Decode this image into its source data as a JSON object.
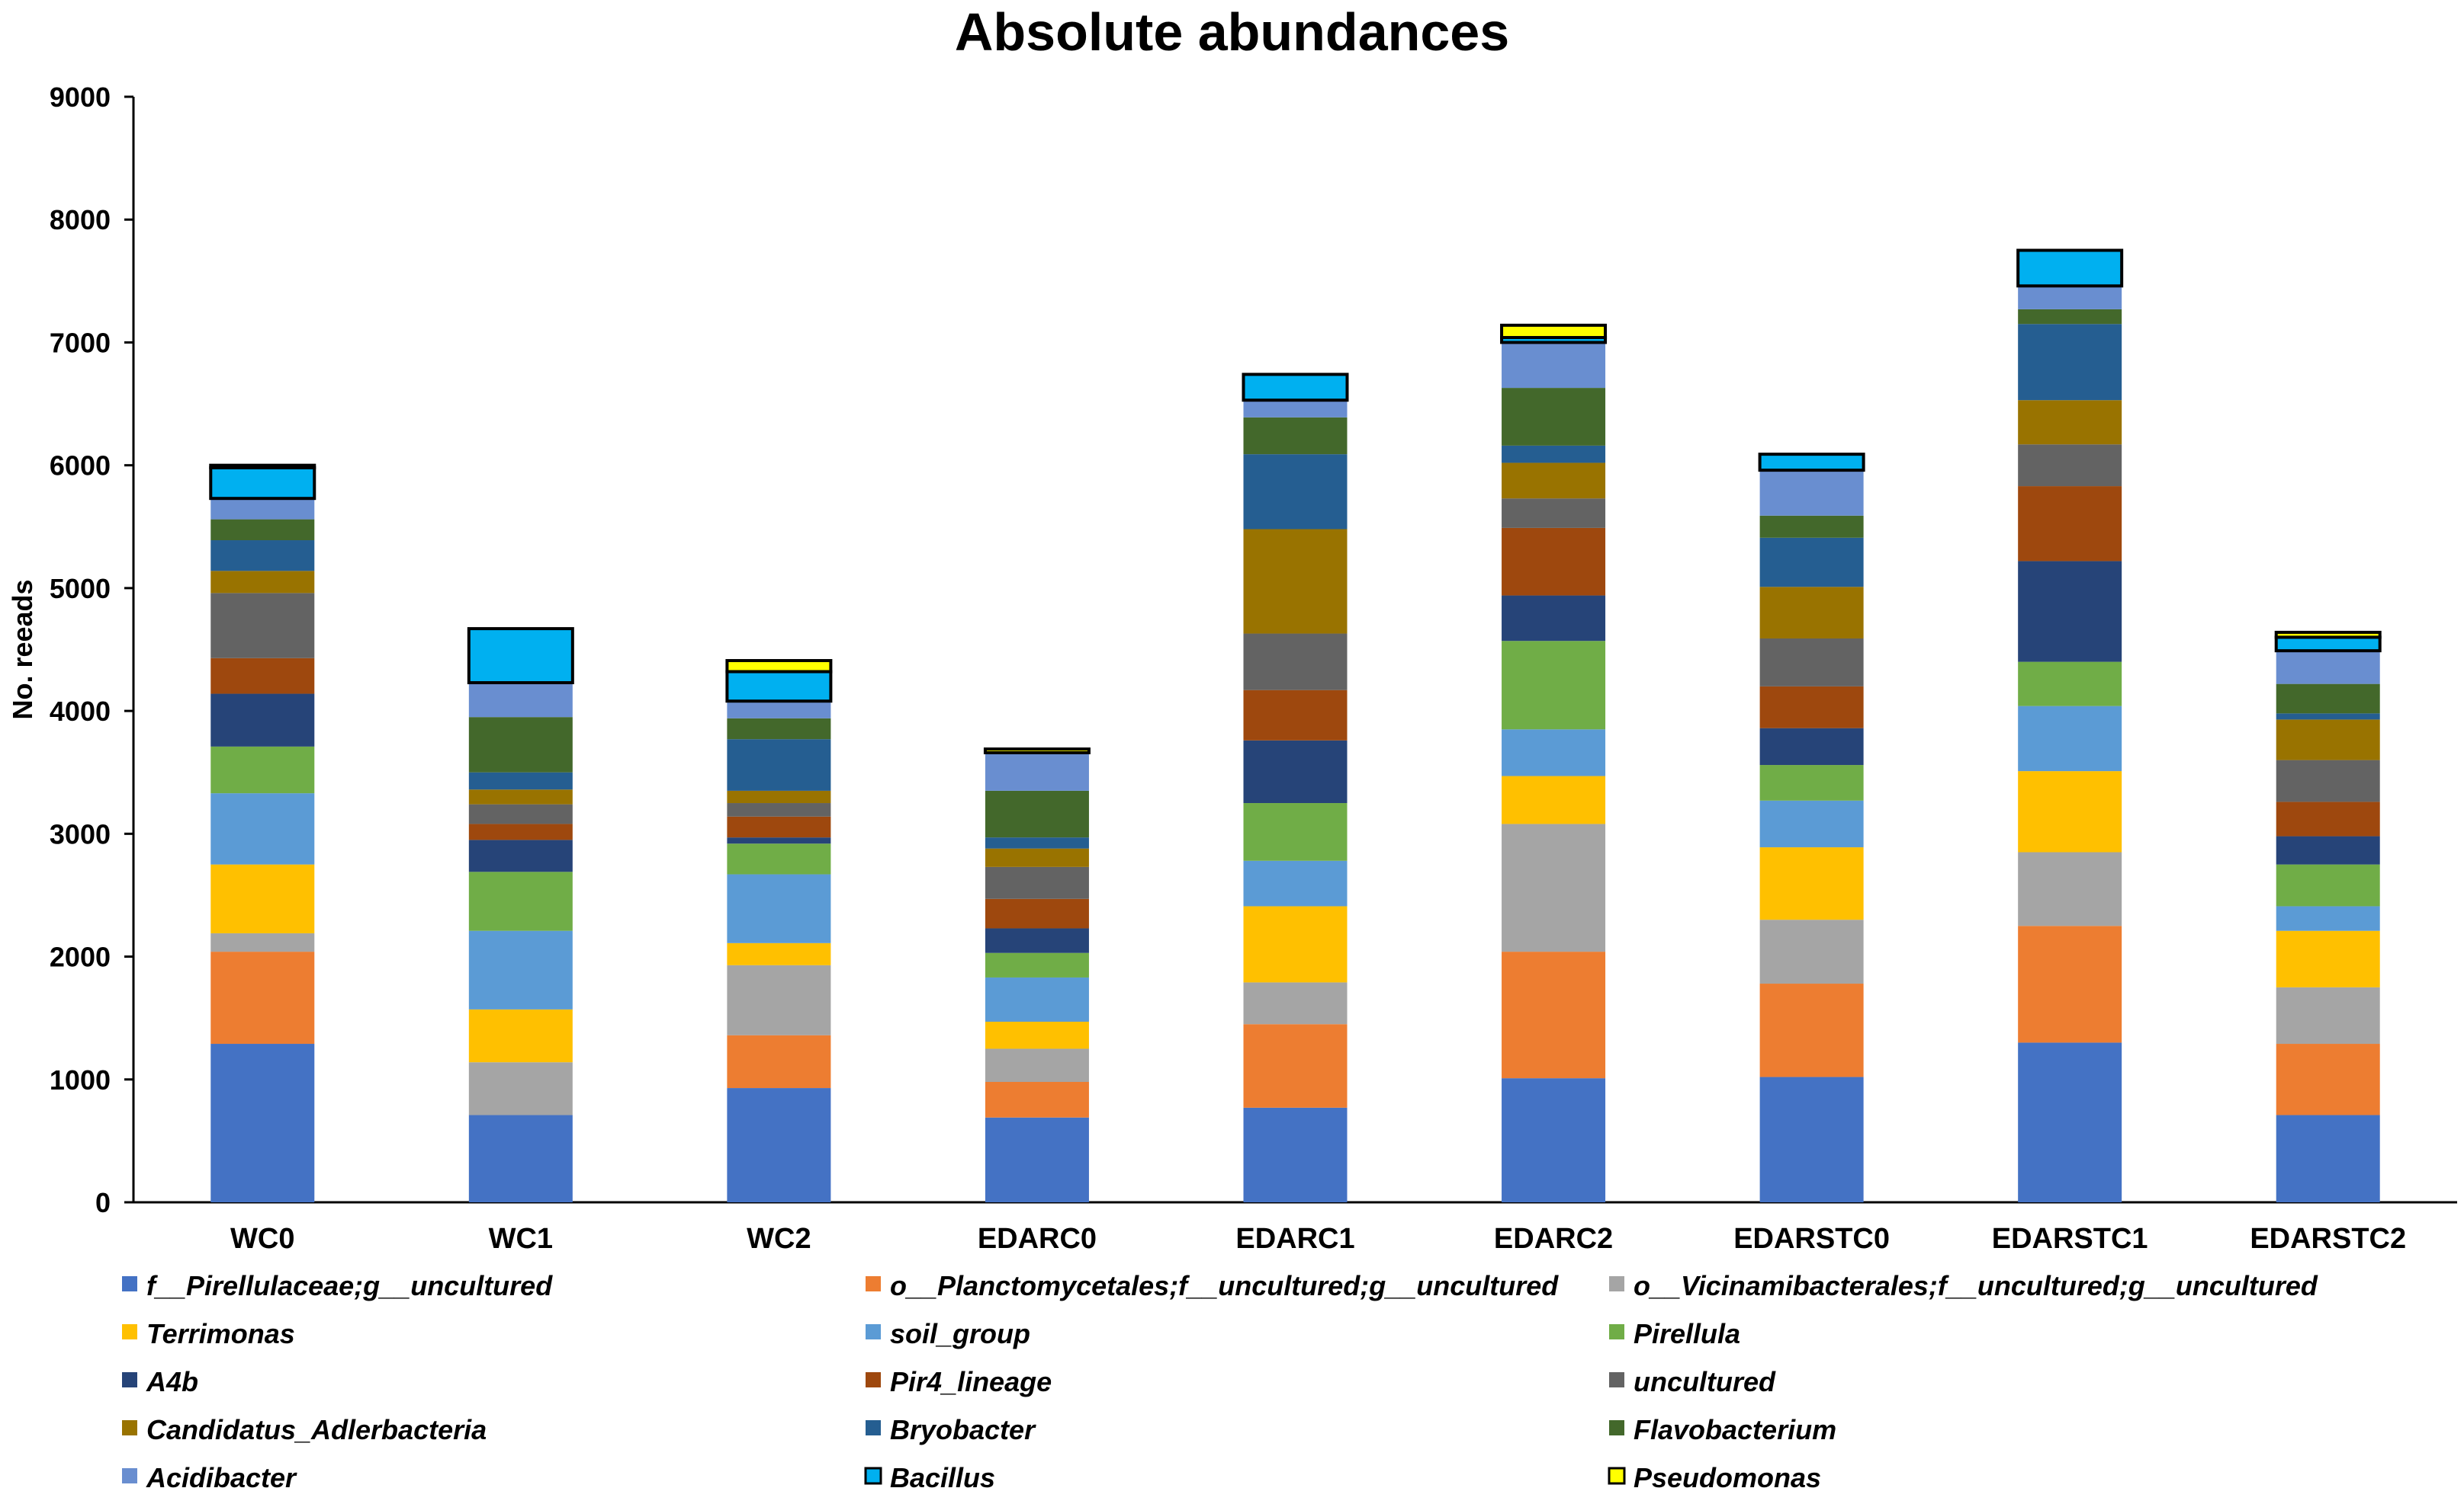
{
  "chart_data": {
    "type": "bar",
    "stacked": true,
    "title": "Absolute abundances",
    "xlabel": "",
    "ylabel": "No. reeads",
    "ylim": [
      0,
      9000
    ],
    "yticks": [
      0,
      1000,
      2000,
      3000,
      4000,
      5000,
      6000,
      7000,
      8000,
      9000
    ],
    "grid": false,
    "legend_position": "bottom",
    "categories": [
      "WC0",
      "WC1",
      "WC2",
      "EDARC0",
      "EDARC1",
      "EDARC2",
      "EDARSTC0",
      "EDARSTC1",
      "EDARSTC2"
    ],
    "series": [
      {
        "name": "f__Pirellulaceae;g__uncultured",
        "color": "#4472C4",
        "values": [
          1290,
          710,
          930,
          690,
          770,
          1010,
          1020,
          1300,
          710
        ]
      },
      {
        "name": "o__Planctomycetales;f__uncultured;g__uncultured",
        "color": "#ED7D31",
        "values": [
          750,
          0,
          430,
          290,
          680,
          1030,
          760,
          950,
          580
        ]
      },
      {
        "name": "o__Vicinamibacterales;f__uncultured;g__uncultured",
        "color": "#A5A5A5",
        "values": [
          150,
          430,
          570,
          270,
          340,
          1040,
          520,
          600,
          460
        ]
      },
      {
        "name": "Terrimonas",
        "color": "#FFC000",
        "values": [
          560,
          430,
          180,
          220,
          620,
          390,
          590,
          660,
          460
        ]
      },
      {
        "name": "soil_group",
        "color": "#5B9BD5",
        "values": [
          580,
          640,
          560,
          360,
          370,
          380,
          380,
          530,
          200
        ]
      },
      {
        "name": "Pirellula",
        "color": "#70AD47",
        "values": [
          380,
          480,
          250,
          200,
          470,
          720,
          290,
          360,
          340
        ]
      },
      {
        "name": "A4b",
        "color": "#264478",
        "values": [
          430,
          260,
          50,
          200,
          510,
          370,
          300,
          820,
          230
        ]
      },
      {
        "name": "Pir4_lineage",
        "color": "#9E480E",
        "values": [
          290,
          130,
          170,
          240,
          410,
          550,
          340,
          610,
          280
        ]
      },
      {
        "name": "uncultured",
        "color": "#636363",
        "values": [
          530,
          160,
          110,
          260,
          460,
          240,
          390,
          340,
          340
        ]
      },
      {
        "name": "Candidatus_Adlerbacteria",
        "color": "#997300",
        "values": [
          180,
          120,
          100,
          150,
          850,
          290,
          420,
          360,
          330
        ]
      },
      {
        "name": "Bryobacter",
        "color": "#255E91",
        "values": [
          250,
          140,
          420,
          90,
          610,
          140,
          400,
          620,
          50
        ]
      },
      {
        "name": "Flavobacterium",
        "color": "#43682B",
        "values": [
          170,
          450,
          170,
          380,
          300,
          470,
          180,
          120,
          240
        ]
      },
      {
        "name": "Acidibacter",
        "color": "#698ED0",
        "values": [
          170,
          280,
          140,
          310,
          140,
          370,
          370,
          190,
          270
        ]
      },
      {
        "name": "Bacillus",
        "color": "#00B0F0",
        "values": [
          250,
          440,
          240,
          0,
          210,
          40,
          130,
          290,
          110
        ]
      },
      {
        "name": "Pseudomonas",
        "color": "#FFFF00",
        "values": [
          20,
          0,
          90,
          30,
          0,
          100,
          0,
          0,
          40
        ]
      }
    ]
  }
}
